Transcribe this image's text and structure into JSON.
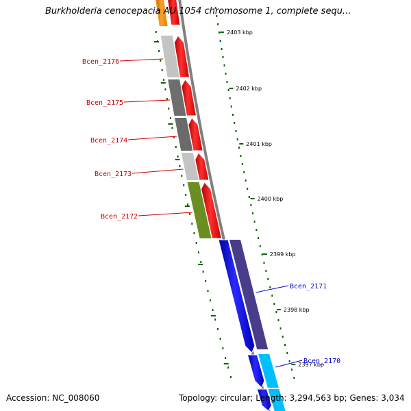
{
  "title": "Burkholderia cenocepacia AU 1054 chromosome 1, complete sequ...",
  "footer": {
    "accession": "Accession: NC_008060",
    "summary": "Topology: circular; Length: 3,294,563 bp; Genes: 3,034"
  },
  "ticks": [
    "2403 kbp",
    "2402 kbp",
    "2401 kbp",
    "2400 kbp",
    "2399 kbp",
    "2398 kbp",
    "2397 kbp"
  ],
  "genes": [
    {
      "label": "Bcen_2176",
      "label_color": "#cc0000",
      "strand": "forward",
      "band_color": "#c4c4c4"
    },
    {
      "label": "Bcen_2175",
      "label_color": "#cc0000",
      "strand": "forward",
      "band_color": "#6e6e6e"
    },
    {
      "label": "Bcen_2174",
      "label_color": "#cc0000",
      "strand": "forward",
      "band_color": "#6a6a6a"
    },
    {
      "label": "Bcen_2173",
      "label_color": "#cc0000",
      "strand": "forward",
      "band_color": "#c4c4c4"
    },
    {
      "label": "Bcen_2172",
      "label_color": "#cc0000",
      "strand": "forward",
      "band_color": "#6b8e23"
    },
    {
      "label": "Bcen_2171",
      "label_color": "#0000cc",
      "strand": "reverse",
      "band_color": "#483d8b"
    },
    {
      "label": "Bcen_2170",
      "label_color": "#0000cc",
      "strand": "reverse",
      "band_color": "#00bfff"
    }
  ],
  "colors": {
    "forward_gene": "#ff0000",
    "reverse_gene": "#0000ff",
    "tick_marks": "#006400",
    "backbone": "#808080"
  }
}
